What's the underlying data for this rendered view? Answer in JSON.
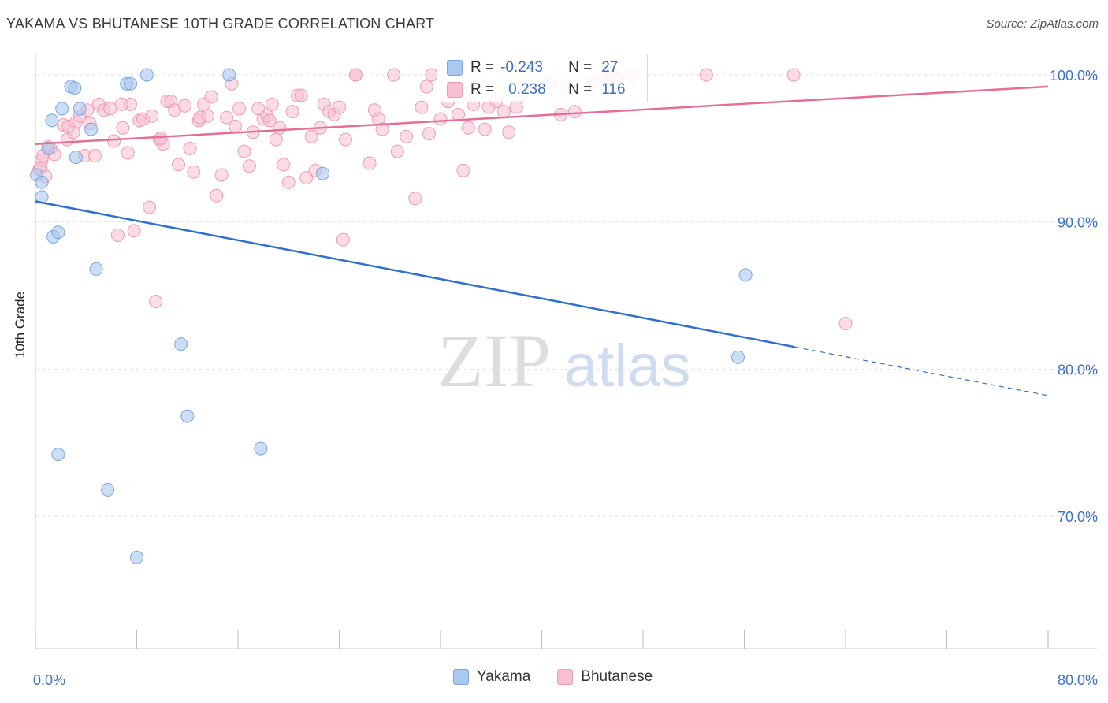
{
  "header": {
    "title": "YAKAMA VS BHUTANESE 10TH GRADE CORRELATION CHART",
    "source": "Source: ZipAtlas.com"
  },
  "watermark": {
    "zip": "ZIP",
    "atlas": "atlas"
  },
  "stats": {
    "yakama": {
      "r_label": "R =",
      "r_value": "-0.243",
      "n_label": "N =",
      "n_value": "27"
    },
    "bhutanese": {
      "r_label": "R =",
      "r_value": "0.238",
      "n_label": "N =",
      "n_value": "116"
    }
  },
  "legend": {
    "yakama": "Yakama",
    "bhutanese": "Bhutanese"
  },
  "colors": {
    "yakama_fill": "#aac8f0",
    "yakama_stroke": "#7aa6df",
    "yakama_line": "#2f6fcf",
    "bhutanese_fill": "#f7bfd0",
    "bhutanese_stroke": "#ee9ab4",
    "bhutanese_line": "#e66e96",
    "tick_label": "#3b6fc9",
    "grid": "#e2e2e2"
  },
  "chart_data": {
    "type": "scatter",
    "title": "YAKAMA VS BHUTANESE 10TH GRADE CORRELATION CHART",
    "xlabel": "",
    "ylabel": "10th Grade",
    "xlim": [
      0,
      80
    ],
    "ylim": [
      61,
      101.5
    ],
    "x_ticks": [
      0,
      8,
      16,
      24,
      32,
      40,
      48,
      56,
      64,
      72,
      80
    ],
    "x_tick_labels": [
      {
        "x": 0,
        "label": "0.0%"
      },
      {
        "x": 80,
        "label": "80.0%"
      }
    ],
    "y_ticks": [
      {
        "y": 100,
        "label": "100.0%"
      },
      {
        "y": 90,
        "label": "90.0%"
      },
      {
        "y": 80,
        "label": "80.0%"
      },
      {
        "y": 70,
        "label": "70.0%"
      }
    ],
    "grid": true,
    "legend_position": "bottom-center",
    "series": [
      {
        "name": "Yakama",
        "points": [
          [
            0.1,
            93.2
          ],
          [
            0.5,
            92.7
          ],
          [
            0.5,
            91.7
          ],
          [
            1.0,
            95.0
          ],
          [
            1.3,
            96.9
          ],
          [
            1.4,
            89.0
          ],
          [
            1.8,
            89.3
          ],
          [
            2.1,
            97.7
          ],
          [
            2.8,
            99.2
          ],
          [
            3.1,
            99.1
          ],
          [
            3.2,
            94.4
          ],
          [
            3.5,
            97.7
          ],
          [
            4.4,
            96.3
          ],
          [
            4.8,
            86.8
          ],
          [
            5.7,
            71.8
          ],
          [
            7.2,
            99.4
          ],
          [
            7.5,
            99.4
          ],
          [
            8.0,
            67.2
          ],
          [
            8.8,
            100.0
          ],
          [
            11.5,
            81.7
          ],
          [
            12.0,
            76.8
          ],
          [
            15.3,
            100.0
          ],
          [
            17.8,
            74.6
          ],
          [
            22.7,
            93.3
          ],
          [
            56.1,
            86.4
          ],
          [
            55.5,
            80.8
          ],
          [
            1.8,
            74.2
          ]
        ],
        "trend": {
          "x": [
            0,
            60,
            80
          ],
          "y": [
            91.4,
            81.5,
            78.2
          ],
          "solid_until": 60
        }
      },
      {
        "name": "Bhutanese",
        "points": [
          [
            0.3,
            93.6
          ],
          [
            0.5,
            94.2
          ],
          [
            0.6,
            94.5
          ],
          [
            0.8,
            93.1
          ],
          [
            1.0,
            95.1
          ],
          [
            1.2,
            95.0
          ],
          [
            1.5,
            94.6
          ],
          [
            2.2,
            96.6
          ],
          [
            2.5,
            95.6
          ],
          [
            3.0,
            96.1
          ],
          [
            3.2,
            96.8
          ],
          [
            3.5,
            97.2
          ],
          [
            3.9,
            94.5
          ],
          [
            4.3,
            96.7
          ],
          [
            4.7,
            94.5
          ],
          [
            5.0,
            98.0
          ],
          [
            5.4,
            97.6
          ],
          [
            5.9,
            97.7
          ],
          [
            6.2,
            95.5
          ],
          [
            6.5,
            89.1
          ],
          [
            6.9,
            96.4
          ],
          [
            7.3,
            94.7
          ],
          [
            7.5,
            98.0
          ],
          [
            7.8,
            89.4
          ],
          [
            8.2,
            96.9
          ],
          [
            8.5,
            97.0
          ],
          [
            9.0,
            91.0
          ],
          [
            9.2,
            97.2
          ],
          [
            9.5,
            84.6
          ],
          [
            9.8,
            95.6
          ],
          [
            10.1,
            95.3
          ],
          [
            10.4,
            98.2
          ],
          [
            10.7,
            98.2
          ],
          [
            11.0,
            97.6
          ],
          [
            11.3,
            93.9
          ],
          [
            11.8,
            97.9
          ],
          [
            12.2,
            95.0
          ],
          [
            12.5,
            93.4
          ],
          [
            12.9,
            96.9
          ],
          [
            13.3,
            98.0
          ],
          [
            13.6,
            97.2
          ],
          [
            13.9,
            98.5
          ],
          [
            14.3,
            91.8
          ],
          [
            14.7,
            93.2
          ],
          [
            15.1,
            97.1
          ],
          [
            15.5,
            99.4
          ],
          [
            15.8,
            96.5
          ],
          [
            16.1,
            97.7
          ],
          [
            16.5,
            94.8
          ],
          [
            16.9,
            93.8
          ],
          [
            17.2,
            96.1
          ],
          [
            17.6,
            97.7
          ],
          [
            18.0,
            97.0
          ],
          [
            18.3,
            97.2
          ],
          [
            18.7,
            98.0
          ],
          [
            19.0,
            95.6
          ],
          [
            19.3,
            96.4
          ],
          [
            19.6,
            93.9
          ],
          [
            20.0,
            92.7
          ],
          [
            20.3,
            97.5
          ],
          [
            20.7,
            98.6
          ],
          [
            21.0,
            98.6
          ],
          [
            21.4,
            93.0
          ],
          [
            21.8,
            95.8
          ],
          [
            22.1,
            93.5
          ],
          [
            22.5,
            96.4
          ],
          [
            22.8,
            98.0
          ],
          [
            23.2,
            97.5
          ],
          [
            23.6,
            97.3
          ],
          [
            24.0,
            97.8
          ],
          [
            24.5,
            95.6
          ],
          [
            25.3,
            100.0
          ],
          [
            25.3,
            100.0
          ],
          [
            26.4,
            94.0
          ],
          [
            26.8,
            97.6
          ],
          [
            27.1,
            97.0
          ],
          [
            27.4,
            96.3
          ],
          [
            28.3,
            100.0
          ],
          [
            28.6,
            94.8
          ],
          [
            29.3,
            95.8
          ],
          [
            30.0,
            91.6
          ],
          [
            30.5,
            97.8
          ],
          [
            31.1,
            96.0
          ],
          [
            31.3,
            100.0
          ],
          [
            32.0,
            97.0
          ],
          [
            32.6,
            98.2
          ],
          [
            33.4,
            97.3
          ],
          [
            33.8,
            93.5
          ],
          [
            34.2,
            96.4
          ],
          [
            34.6,
            98.0
          ],
          [
            35.5,
            96.3
          ],
          [
            35.8,
            97.8
          ],
          [
            36.4,
            98.2
          ],
          [
            37.0,
            97.5
          ],
          [
            37.4,
            96.1
          ],
          [
            38.0,
            97.8
          ],
          [
            38.3,
            98.6
          ],
          [
            40.7,
            99.5
          ],
          [
            41.5,
            97.3
          ],
          [
            41.9,
            99.1
          ],
          [
            42.6,
            97.5
          ],
          [
            45.1,
            99.8
          ],
          [
            45.5,
            100.0
          ],
          [
            47.1,
            100.0
          ],
          [
            53.0,
            100.0
          ],
          [
            59.9,
            100.0
          ],
          [
            64.0,
            83.1
          ],
          [
            0.4,
            93.7
          ],
          [
            2.6,
            96.5
          ],
          [
            6.8,
            98.0
          ],
          [
            24.3,
            88.8
          ],
          [
            18.5,
            96.9
          ],
          [
            13.0,
            97.1
          ],
          [
            9.9,
            95.7
          ],
          [
            4.1,
            97.6
          ],
          [
            30.9,
            99.2
          ],
          [
            44.0,
            99.5
          ],
          [
            46.0,
            99.8
          ]
        ],
        "trend": {
          "x": [
            0,
            80
          ],
          "y": [
            95.3,
            99.2
          ]
        }
      }
    ]
  }
}
